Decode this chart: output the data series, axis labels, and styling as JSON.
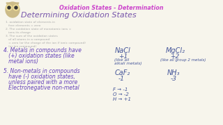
{
  "bg_color": "#f7f5ec",
  "title_top": "Oxidation States - Determination",
  "title_top_color": "#cc44cc",
  "main_title": "Determining Oxidation States",
  "main_title_color": "#7755aa",
  "small_notes": [
    "1. oxidation state of elements in",
    "   free elements = zero",
    "2. The oxidation state of monatomic ions =",
    "   ions its charge",
    "3. The sum of the oxidation states",
    "   of all atoms in a compound",
    "   = zero (or the charge of the ion if ionic compound)",
    "   (or ion compound)"
  ],
  "note4_line1": "4. Metals in compounds have",
  "note4_line2": "   (+) oxidation states (like",
  "note4_line3": "   metal ions)",
  "note5_line1": "5. Non-metals in compounds",
  "note5_line2": "   have (-) oxidation states,",
  "note5_line3": "   unless paired with a more",
  "note5_line4": "   Electronegative non-metal",
  "nacl_label": "NaCl",
  "nacl_value": "+1",
  "nacl_note1": "(like all",
  "nacl_note2": "alkali metals)",
  "mgcl2_label": "MgCl₂",
  "mgcl2_value": "+2",
  "mgcl2_note": "(like all group 2 metals)",
  "caf2_label": "CaF₂",
  "caf2_value": "-1",
  "nh3_label": "NH₃",
  "nh3_value": "-3",
  "arrow1": "F → -1",
  "arrow2": "O → -2",
  "arrow3": "H → +1",
  "notes_color": "#aaaaaa",
  "body_color": "#6644bb",
  "chem_color": "#445599",
  "value_color": "#445599"
}
